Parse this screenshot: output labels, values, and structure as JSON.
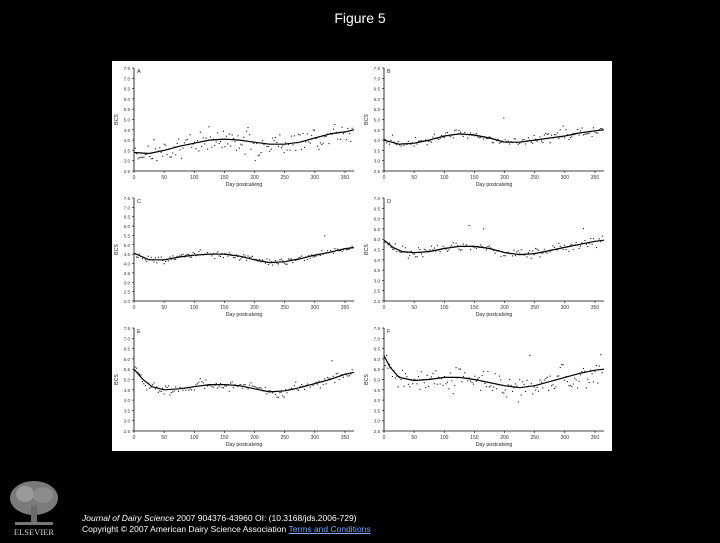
{
  "header": {
    "title": "Figure 5"
  },
  "citation": {
    "journal": "Journal of Dairy Science",
    "details": " 2007 904376-43960 OI: (10.3168/jds.2006-729)",
    "copyright": "Copyright © 2007 American Dairy Science Association ",
    "terms_link": "Terms and Conditions"
  },
  "logo": {
    "label": "ELSEVIER"
  },
  "colors": {
    "background": "#000000",
    "figure_bg": "#ffffff",
    "ink": "#000000",
    "link": "#7aa7ff"
  },
  "chart_data": [
    {
      "type": "scatter",
      "panel": "A",
      "xlabel": "Day postcalving",
      "ylabel": "BCS",
      "xlim": [
        0,
        365
      ],
      "ylim": [
        2.5,
        7.5
      ],
      "x_ticks": [
        0,
        50,
        100,
        150,
        200,
        250,
        300,
        350
      ],
      "y_ticks": [
        2.5,
        3.0,
        3.5,
        4.0,
        4.5,
        5.0,
        5.5,
        6.0,
        6.5,
        7.0,
        7.5
      ],
      "fit_line": [
        [
          0,
          3.4
        ],
        [
          25,
          3.35
        ],
        [
          50,
          3.5
        ],
        [
          75,
          3.7
        ],
        [
          100,
          3.85
        ],
        [
          125,
          4.0
        ],
        [
          150,
          4.05
        ],
        [
          175,
          4.0
        ],
        [
          200,
          3.9
        ],
        [
          225,
          3.8
        ],
        [
          250,
          3.8
        ],
        [
          275,
          3.9
        ],
        [
          300,
          4.1
        ],
        [
          325,
          4.3
        ],
        [
          350,
          4.4
        ],
        [
          365,
          4.5
        ]
      ]
    },
    {
      "type": "scatter",
      "panel": "B",
      "xlabel": "Day postcalving",
      "ylabel": "BCS",
      "xlim": [
        0,
        365
      ],
      "ylim": [
        2.5,
        7.5
      ],
      "x_ticks": [
        0,
        50,
        100,
        150,
        200,
        250,
        300,
        350
      ],
      "y_ticks": [
        2.5,
        3.0,
        3.5,
        4.0,
        4.5,
        5.0,
        5.5,
        6.0,
        6.5,
        7.0,
        7.5
      ],
      "fit_line": [
        [
          0,
          4.0
        ],
        [
          25,
          3.8
        ],
        [
          50,
          3.85
        ],
        [
          75,
          4.0
        ],
        [
          100,
          4.2
        ],
        [
          125,
          4.3
        ],
        [
          150,
          4.25
        ],
        [
          175,
          4.1
        ],
        [
          200,
          3.9
        ],
        [
          225,
          3.9
        ],
        [
          250,
          4.0
        ],
        [
          275,
          4.1
        ],
        [
          300,
          4.2
        ],
        [
          325,
          4.35
        ],
        [
          350,
          4.45
        ],
        [
          365,
          4.5
        ]
      ]
    },
    {
      "type": "scatter",
      "panel": "C",
      "xlabel": "Day postcalving",
      "ylabel": "BCS",
      "xlim": [
        0,
        365
      ],
      "ylim": [
        2.0,
        7.5
      ],
      "x_ticks": [
        0,
        50,
        100,
        150,
        200,
        250,
        300,
        350
      ],
      "y_ticks": [
        2.0,
        2.5,
        3.0,
        3.5,
        4.0,
        4.5,
        5.0,
        5.5,
        6.0,
        6.5,
        7.0,
        7.5
      ],
      "fit_line": [
        [
          0,
          4.55
        ],
        [
          25,
          4.2
        ],
        [
          50,
          4.2
        ],
        [
          75,
          4.35
        ],
        [
          100,
          4.45
        ],
        [
          125,
          4.5
        ],
        [
          150,
          4.5
        ],
        [
          175,
          4.4
        ],
        [
          200,
          4.2
        ],
        [
          225,
          4.05
        ],
        [
          250,
          4.1
        ],
        [
          275,
          4.25
        ],
        [
          300,
          4.45
        ],
        [
          325,
          4.6
        ],
        [
          350,
          4.8
        ],
        [
          365,
          4.85
        ]
      ]
    },
    {
      "type": "scatter",
      "panel": "D",
      "xlabel": "Day postcalving",
      "ylabel": "BCS",
      "xlim": [
        0,
        365
      ],
      "ylim": [
        2.0,
        7.0
      ],
      "x_ticks": [
        0,
        50,
        100,
        150,
        200,
        250,
        300,
        350
      ],
      "y_ticks": [
        2.0,
        2.5,
        3.0,
        3.5,
        4.0,
        4.5,
        5.0,
        5.5,
        6.0,
        6.5,
        7.0
      ],
      "fit_line": [
        [
          0,
          4.95
        ],
        [
          15,
          4.6
        ],
        [
          30,
          4.4
        ],
        [
          50,
          4.35
        ],
        [
          75,
          4.4
        ],
        [
          100,
          4.55
        ],
        [
          125,
          4.65
        ],
        [
          150,
          4.65
        ],
        [
          175,
          4.55
        ],
        [
          200,
          4.35
        ],
        [
          225,
          4.25
        ],
        [
          250,
          4.3
        ],
        [
          275,
          4.45
        ],
        [
          300,
          4.6
        ],
        [
          325,
          4.75
        ],
        [
          350,
          4.9
        ],
        [
          365,
          4.95
        ]
      ]
    },
    {
      "type": "scatter",
      "panel": "E",
      "xlabel": "Day postcalving",
      "ylabel": "BCS",
      "xlim": [
        0,
        365
      ],
      "ylim": [
        2.5,
        7.5
      ],
      "x_ticks": [
        0,
        50,
        100,
        150,
        200,
        250,
        300,
        350
      ],
      "y_ticks": [
        2.5,
        3.0,
        3.5,
        4.0,
        4.5,
        5.0,
        5.5,
        6.0,
        6.5,
        7.0,
        7.5
      ],
      "fit_line": [
        [
          0,
          5.5
        ],
        [
          15,
          5.0
        ],
        [
          30,
          4.65
        ],
        [
          50,
          4.5
        ],
        [
          75,
          4.55
        ],
        [
          100,
          4.65
        ],
        [
          125,
          4.75
        ],
        [
          150,
          4.75
        ],
        [
          175,
          4.7
        ],
        [
          200,
          4.55
        ],
        [
          225,
          4.4
        ],
        [
          250,
          4.45
        ],
        [
          275,
          4.6
        ],
        [
          300,
          4.8
        ],
        [
          325,
          5.0
        ],
        [
          350,
          5.25
        ],
        [
          365,
          5.35
        ]
      ]
    },
    {
      "type": "scatter",
      "panel": "F",
      "xlabel": "Day postcalving",
      "ylabel": "BCS",
      "xlim": [
        0,
        365
      ],
      "ylim": [
        2.5,
        7.5
      ],
      "x_ticks": [
        0,
        50,
        100,
        150,
        200,
        250,
        300,
        350
      ],
      "y_ticks": [
        2.5,
        3.0,
        3.5,
        4.0,
        4.5,
        5.0,
        5.5,
        6.0,
        6.5,
        7.0,
        7.5
      ],
      "fit_line": [
        [
          0,
          6.15
        ],
        [
          10,
          5.6
        ],
        [
          25,
          5.1
        ],
        [
          50,
          4.95
        ],
        [
          75,
          5.0
        ],
        [
          100,
          5.1
        ],
        [
          125,
          5.1
        ],
        [
          150,
          5.0
        ],
        [
          175,
          4.85
        ],
        [
          200,
          4.7
        ],
        [
          225,
          4.6
        ],
        [
          250,
          4.7
        ],
        [
          275,
          4.9
        ],
        [
          300,
          5.1
        ],
        [
          325,
          5.3
        ],
        [
          350,
          5.45
        ],
        [
          365,
          5.5
        ]
      ]
    }
  ]
}
